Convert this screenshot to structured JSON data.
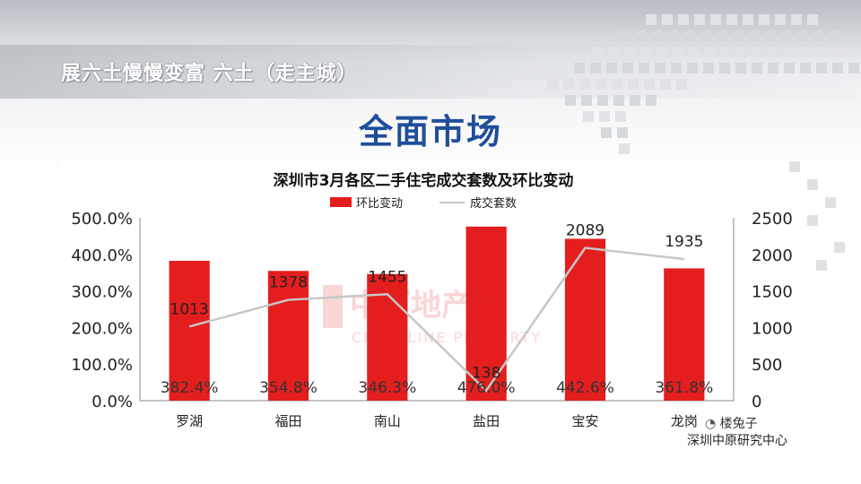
{
  "header": {
    "text": "展六土慢慢变富  六土（走主城）"
  },
  "slide": {
    "title": "全面市场"
  },
  "watermark": {
    "cn": "中原地产",
    "en": "CENTALINE PROPERTY"
  },
  "footer": {
    "wechat": "楼兔子",
    "source": "深圳中原研究中心"
  },
  "colors": {
    "bar": "#e41e1e",
    "line": "#c7c7c7",
    "title_blue": "#1f4e9a"
  },
  "chart_data": {
    "type": "bar",
    "title": "深圳市3月各区二手住宅成交套数及环比变动",
    "categories": [
      "罗湖",
      "福田",
      "南山",
      "盐田",
      "宝安",
      "龙岗"
    ],
    "series": [
      {
        "name": "环比变动",
        "type": "bar",
        "axis": "left",
        "values": [
          382.4,
          354.8,
          346.3,
          476.0,
          442.6,
          361.8
        ],
        "labels": [
          "382.4%",
          "354.8%",
          "346.3%",
          "476.0%",
          "442.6%",
          "361.8%"
        ]
      },
      {
        "name": "成交套数",
        "type": "line",
        "axis": "right",
        "values": [
          1013,
          1378,
          1455,
          138,
          2089,
          1935
        ],
        "labels": [
          "1013",
          "1378",
          "1455",
          "138",
          "2089",
          "1935"
        ]
      }
    ],
    "y_left": {
      "range": [
        0,
        500
      ],
      "ticks": [
        0,
        100,
        200,
        300,
        400,
        500
      ],
      "tick_labels": [
        "0.0%",
        "100.0%",
        "200.0%",
        "300.0%",
        "400.0%",
        "500.0%"
      ]
    },
    "y_right": {
      "range": [
        0,
        2500
      ],
      "ticks": [
        0,
        500,
        1000,
        1500,
        2000,
        2500
      ],
      "tick_labels": [
        "0",
        "500",
        "1000",
        "1500",
        "2000",
        "2500"
      ]
    },
    "legend_position": "top-center",
    "grid": false
  }
}
